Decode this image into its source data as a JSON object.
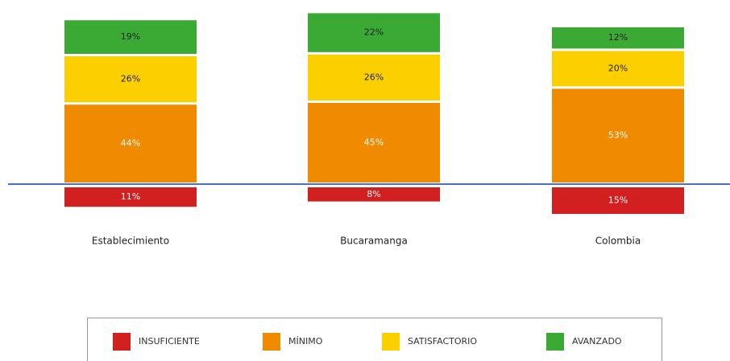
{
  "chart_data": {
    "type": "bar",
    "stacked": true,
    "categories": [
      "Establecimiento",
      "Bucaramanga",
      "Colombia"
    ],
    "series": [
      {
        "name": "INSUFICIENTE",
        "color": "#d21f1f",
        "direction": "down",
        "values": [
          11,
          8,
          15
        ],
        "value_labels": [
          "11%",
          "8%",
          "15%"
        ]
      },
      {
        "name": "MÍNIMO",
        "color": "#f08a00",
        "values": [
          44,
          45,
          53
        ],
        "value_labels": [
          "44%",
          "45%",
          "53%"
        ]
      },
      {
        "name": "SATISFACTORIO",
        "color": "#fcd000",
        "values": [
          26,
          26,
          20
        ],
        "value_labels": [
          "26%",
          "26%",
          "20%"
        ]
      },
      {
        "name": "AVANZADO",
        "color": "#3aaa35",
        "values": [
          19,
          22,
          12
        ],
        "value_labels": [
          "19%",
          "22%",
          "12%"
        ]
      }
    ]
  }
}
